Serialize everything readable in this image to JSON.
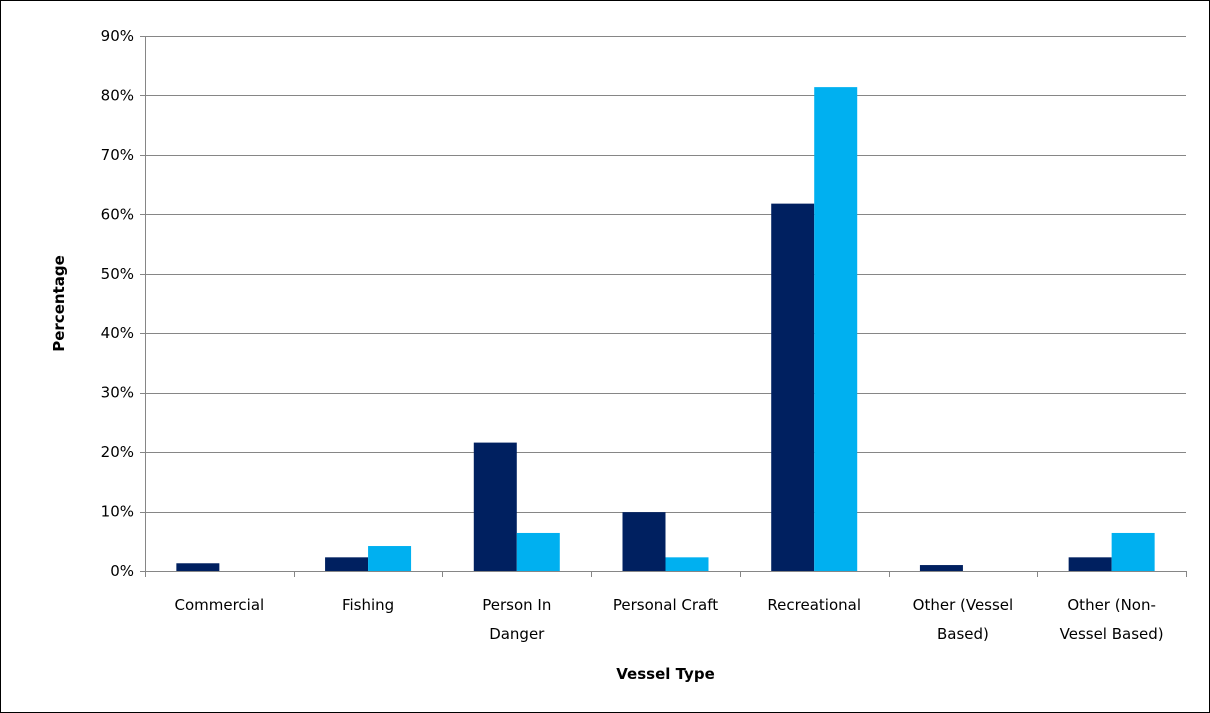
{
  "chart_data": {
    "type": "bar",
    "title": "",
    "xlabel": "Vessel Type",
    "ylabel": "Percentage",
    "ylim": [
      0,
      90
    ],
    "yticks": [
      0,
      10,
      20,
      30,
      40,
      50,
      60,
      70,
      80,
      90
    ],
    "ytick_labels": [
      "0%",
      "10%",
      "20%",
      "30%",
      "40%",
      "50%",
      "60%",
      "70%",
      "80%",
      "90%"
    ],
    "grid": true,
    "legend": "none",
    "categories": [
      [
        "Commercial"
      ],
      [
        "Fishing"
      ],
      [
        "Person In",
        "Danger"
      ],
      [
        "Personal Craft"
      ],
      [
        "Recreational"
      ],
      [
        "Other (Vessel",
        "Based)"
      ],
      [
        "Other (Non-",
        "Vessel Based)"
      ]
    ],
    "series": [
      {
        "color": "#002060",
        "values": [
          1.3,
          2.3,
          21.6,
          9.9,
          61.8,
          1.0,
          2.3
        ]
      },
      {
        "color": "#00b0f0",
        "values": [
          0,
          4.2,
          6.4,
          2.3,
          81.4,
          0,
          6.4
        ]
      }
    ]
  }
}
